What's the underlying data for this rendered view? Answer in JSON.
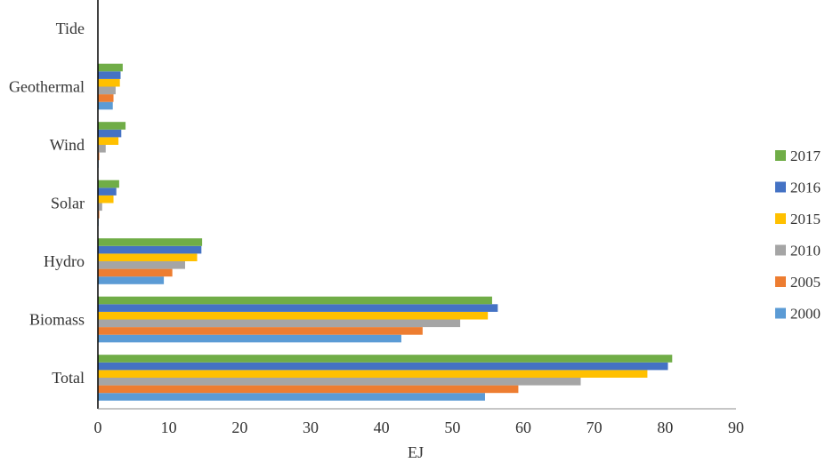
{
  "chart_data": {
    "type": "bar",
    "orientation": "horizontal",
    "categories": [
      "Total",
      "Biomass",
      "Hydro",
      "Solar",
      "Wind",
      "Geothermal",
      "Tide"
    ],
    "series": [
      {
        "name": "2000",
        "color": "#5B9BD5",
        "values": [
          54.6,
          42.8,
          9.3,
          0.1,
          0.1,
          2.1,
          0
        ]
      },
      {
        "name": "2005",
        "color": "#ED7D31",
        "values": [
          59.3,
          45.8,
          10.5,
          0.2,
          0.2,
          2.2,
          0
        ]
      },
      {
        "name": "2010",
        "color": "#A5A5A5",
        "values": [
          68.1,
          51.1,
          12.3,
          0.6,
          1.1,
          2.5,
          0
        ]
      },
      {
        "name": "2015",
        "color": "#FFC000",
        "values": [
          77.5,
          55.0,
          14.0,
          2.2,
          2.9,
          3.1,
          0
        ]
      },
      {
        "name": "2016",
        "color": "#4472C4",
        "values": [
          80.4,
          56.4,
          14.6,
          2.6,
          3.3,
          3.2,
          0
        ]
      },
      {
        "name": "2017",
        "color": "#70AD47",
        "values": [
          81.0,
          55.6,
          14.7,
          3.0,
          3.9,
          3.5,
          0
        ]
      }
    ],
    "xlabel": "EJ",
    "ylabel": "",
    "xlim": [
      0,
      90
    ],
    "xticks": [
      "0",
      "10",
      "20",
      "30",
      "40",
      "50",
      "60",
      "70",
      "80",
      "90"
    ],
    "legend_order": [
      "2017",
      "2016",
      "2015",
      "2010",
      "2005",
      "2000"
    ],
    "legend_position": "right",
    "grid": false
  }
}
